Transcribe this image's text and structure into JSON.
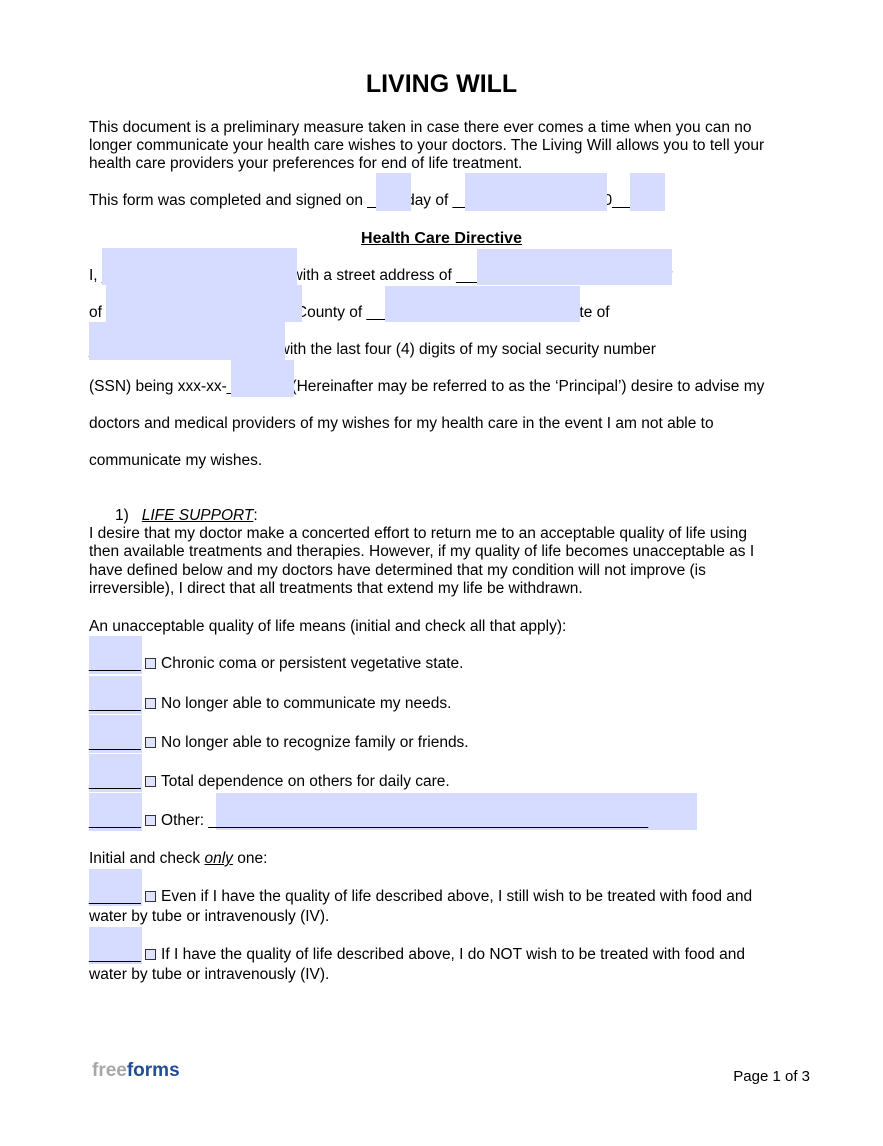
{
  "title": "LIVING WILL",
  "intro": [
    "This document is a preliminary measure taken in case there ever comes a time when you can no",
    "longer communicate your health care wishes to your doctors. The Living Will allows you to tell your",
    "health care providers your preferences for end of life treatment."
  ],
  "signed_line": "This form was completed and signed on ____ day of ________________,20____.",
  "section_heading": "Health Care Directive",
  "directive_lines": [
    "I, _____________________, with a street address of _____________________, City",
    "of _____________________, County of _____________________, State of",
    "_____________________, with the last four (4) digits of my social security number",
    "(SSN) being xxx-xx-_______ (Hereinafter may be referred to as the ‘Principal’) desire to advise my",
    "doctors and medical providers of my wishes for my health care in the event I am not able to",
    "communicate my wishes."
  ],
  "life_support": {
    "number": "1)",
    "heading": "LIFE SUPPORT",
    "para": [
      "I desire that my doctor make a concerted effort to return me to an acceptable quality of life using",
      "then available treatments and therapies. However, if my quality of life becomes unacceptable as I",
      "have defined below and my doctors have determined that my condition will not improve (is",
      "irreversible), I direct that all treatments that extend my life be withdrawn."
    ],
    "unacceptable_intro": "An unacceptable quality of life means (initial and check all that apply):",
    "options": [
      "Chronic coma or persistent vegetative state.",
      "No longer able to communicate my needs.",
      "No longer able to recognize family or friends.",
      "Total dependence on others for daily care.",
      "Other: ___________________________________________________"
    ],
    "initial_blank": "______",
    "only_one_pre": "Initial and check ",
    "only_one_em": "only",
    "only_one_post": " one:",
    "food_options": [
      [
        "Even if I have the quality of life described above, I still wish to be treated with food and",
        "water by tube or intravenously (IV)."
      ],
      [
        "If I have the quality of life described above, I do NOT wish to be treated with food and",
        "water by tube or intravenously (IV)."
      ]
    ]
  },
  "footer": {
    "logo_free": "free",
    "logo_forms": "forms",
    "page": "Page 1 of 3"
  },
  "colors": {
    "field_fill": "#d6dcff",
    "logo_gray": "#a8a8a8",
    "logo_blue": "#1d4e96"
  }
}
